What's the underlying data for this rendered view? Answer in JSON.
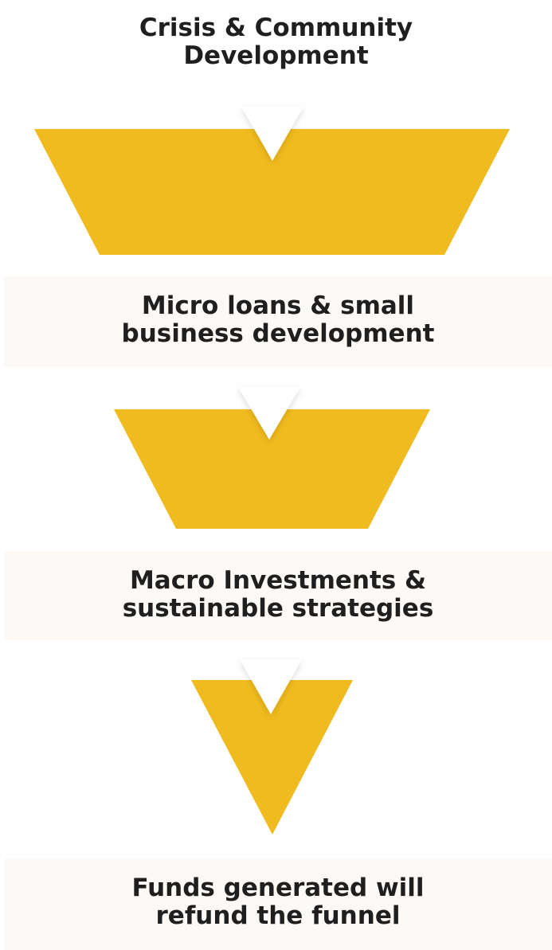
{
  "title": "Crisis & Community\nDevelopment",
  "stages": [
    {
      "label": "Micro loans & small\nbusiness development"
    },
    {
      "label": "Macro Investments &\nsustainable strategies"
    },
    {
      "label": "Funds generated will\nrefund the funnel"
    }
  ],
  "colors": {
    "funnel": "#f0bb1e",
    "band": "#fcf9f6",
    "text": "#1f1f1f",
    "notch": "#ffffff"
  }
}
